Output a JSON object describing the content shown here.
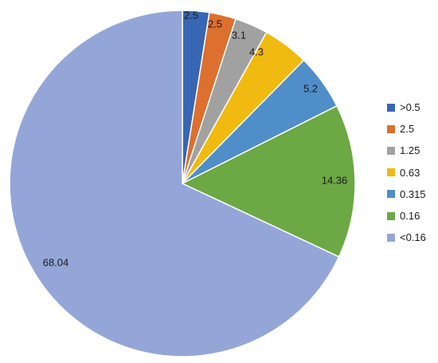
{
  "chart_data": {
    "type": "pie",
    "title": "",
    "start_angle_deg": 90,
    "direction": "clockwise",
    "legend_position": "right",
    "slices": [
      {
        "label": ">0.5",
        "value": 2.5,
        "value_label": "2.5",
        "color": "#3866b4"
      },
      {
        "label": "2.5",
        "value": 2.5,
        "value_label": "2.5",
        "color": "#dd6f2f"
      },
      {
        "label": "1.25",
        "value": 3.1,
        "value_label": "3.1",
        "color": "#a1a1a1"
      },
      {
        "label": "0.63",
        "value": 4.3,
        "value_label": "4.3",
        "color": "#f1ba10"
      },
      {
        "label": "0.315",
        "value": 5.2,
        "value_label": "5.2",
        "color": "#4f8ec9"
      },
      {
        "label": "0.16",
        "value": 14.36,
        "value_label": "14.36",
        "color": "#6ca843"
      },
      {
        "label": "<0.16",
        "value": 68.04,
        "value_label": "68.04",
        "color": "#94a6d8"
      }
    ]
  }
}
